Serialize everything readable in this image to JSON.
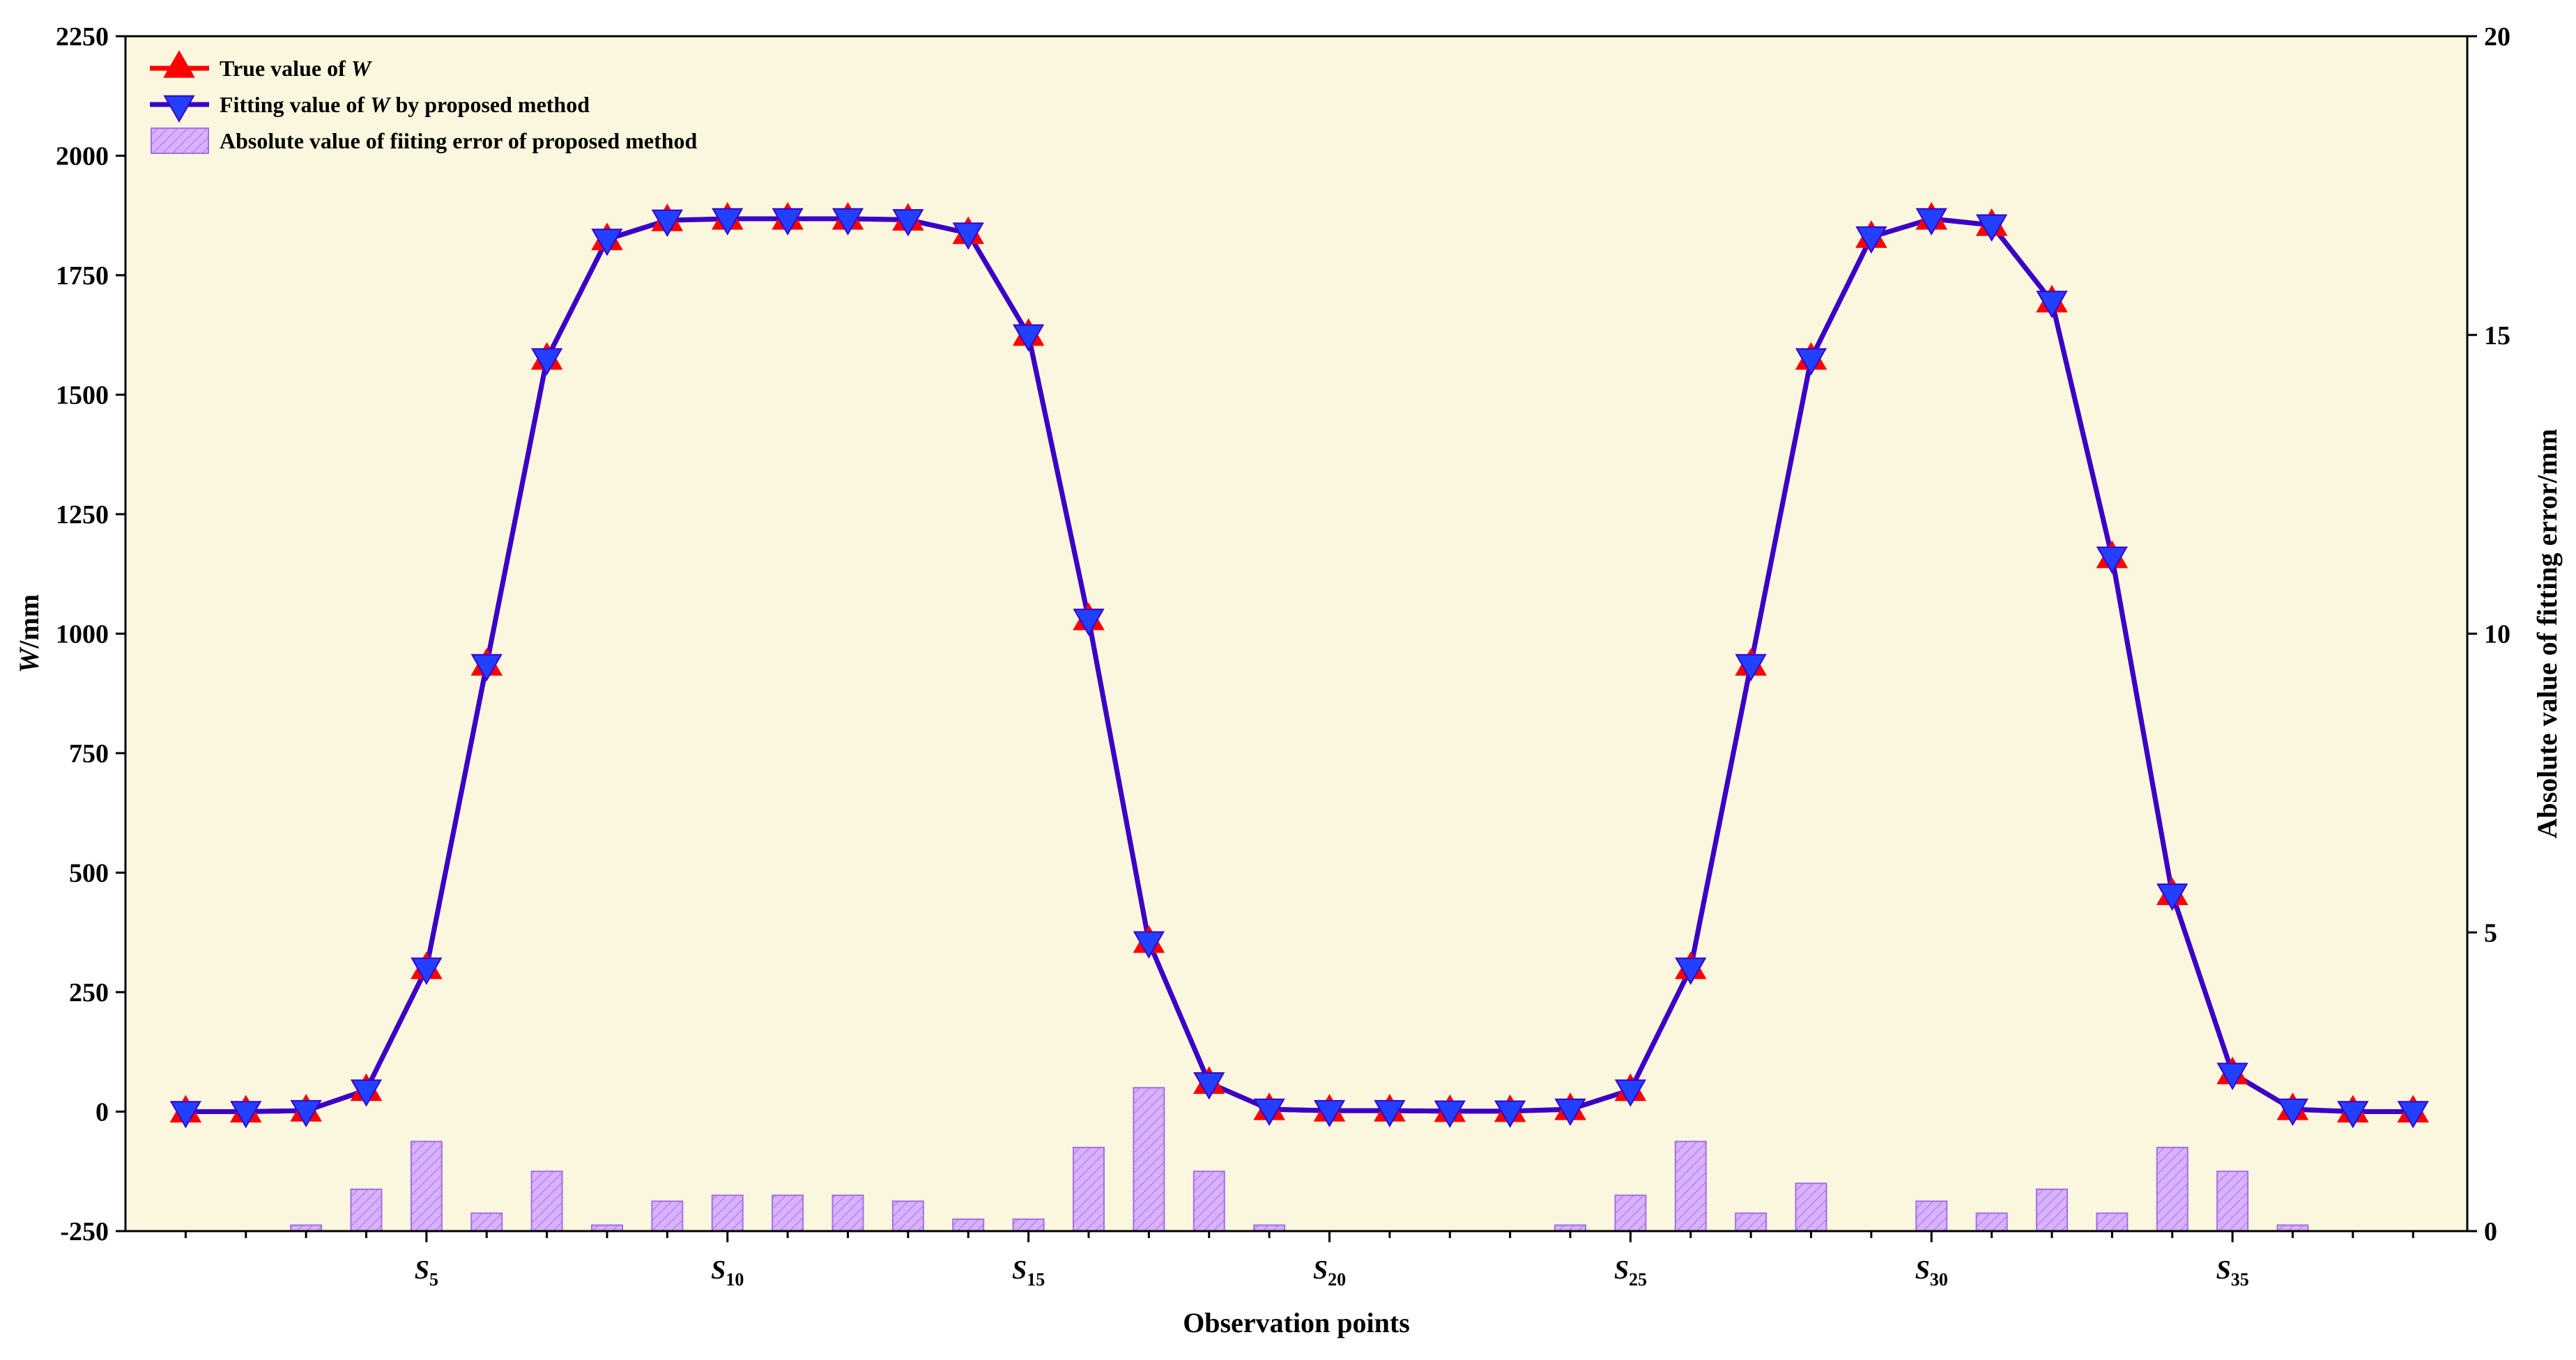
{
  "colors": {
    "plot_background": "#fbf7df",
    "true_line": "#ff0000",
    "fit_line": "#3a00c8",
    "fit_marker": "#2340ff",
    "bar_fill": "#d9b2ff",
    "bar_stroke": "#a46ee6",
    "axis": "#000000"
  },
  "chart_data": {
    "type": "line",
    "xlabel": "Observation points",
    "ylabel_main": "W",
    "ylabel_unit": "/mm",
    "ylabel_right": "Absolute value of fitting error/mm",
    "ylim_left": [
      -250,
      2250
    ],
    "yticks_left": [
      "-250",
      "0",
      "250",
      "500",
      "750",
      "1000",
      "1250",
      "1500",
      "1750",
      "2000",
      "2250"
    ],
    "ylim_right": [
      0,
      20
    ],
    "yticks_right": [
      "0",
      "5",
      "10",
      "15",
      "20"
    ],
    "xlim": [
      0,
      38.9
    ],
    "x": [
      1,
      2,
      3,
      4,
      5,
      6,
      7,
      8,
      9,
      10,
      11,
      12,
      13,
      14,
      15,
      16,
      17,
      18,
      19,
      20,
      21,
      22,
      23,
      24,
      25,
      26,
      27,
      28,
      29,
      30,
      31,
      32,
      33,
      34,
      35,
      36,
      37,
      38
    ],
    "x_tick_labels": [
      {
        "x": 5,
        "base": "S",
        "sub": "5"
      },
      {
        "x": 10,
        "base": "S",
        "sub": "10"
      },
      {
        "x": 15,
        "base": "S",
        "sub": "15"
      },
      {
        "x": 20,
        "base": "S",
        "sub": "20"
      },
      {
        "x": 25,
        "base": "S",
        "sub": "25"
      },
      {
        "x": 30,
        "base": "S",
        "sub": "30"
      },
      {
        "x": 35,
        "base": "S",
        "sub": "35"
      }
    ],
    "legend": {
      "placement": "top-left",
      "entries": [
        {
          "prefix": "True value of ",
          "italic": "W",
          "suffix": ""
        },
        {
          "prefix": "Fitting value of ",
          "italic": "W",
          "suffix": " by proposed method"
        },
        {
          "prefix": "Absolute value of fiiting error of proposed method",
          "italic": "",
          "suffix": ""
        }
      ]
    },
    "series": [
      {
        "name": "True value of W",
        "axis": "left",
        "marker": "triangle-up",
        "values": [
          0,
          0,
          2,
          45,
          300,
          935,
          1575,
          1825,
          1865,
          1868,
          1868,
          1868,
          1866,
          1838,
          1625,
          1030,
          355,
          60,
          5,
          2,
          2,
          1,
          1,
          5,
          45,
          300,
          935,
          1575,
          1830,
          1868,
          1855,
          1695,
          1160,
          455,
          80,
          5,
          0,
          0
        ]
      },
      {
        "name": "Fitting value of W by proposed method",
        "axis": "left",
        "marker": "triangle-down",
        "values": [
          0,
          0,
          2,
          45,
          300,
          935,
          1575,
          1825,
          1865,
          1868,
          1868,
          1868,
          1866,
          1838,
          1625,
          1030,
          355,
          60,
          5,
          2,
          2,
          1,
          1,
          5,
          45,
          300,
          935,
          1575,
          1830,
          1868,
          1855,
          1695,
          1160,
          455,
          80,
          5,
          0,
          0
        ]
      },
      {
        "name": "Absolute value of fiiting error of proposed method",
        "axis": "right",
        "type": "bar",
        "values": [
          0,
          0,
          0.1,
          0.7,
          1.5,
          0.3,
          1.0,
          0.1,
          0.5,
          0.6,
          0.6,
          0.6,
          0.5,
          0.2,
          0.2,
          1.4,
          2.4,
          1.0,
          0.1,
          0,
          0,
          0,
          0,
          0.1,
          0.6,
          1.5,
          0.3,
          0.8,
          0,
          0.5,
          0.3,
          0.7,
          0.3,
          1.4,
          1.0,
          0.1,
          0,
          0
        ]
      }
    ]
  }
}
